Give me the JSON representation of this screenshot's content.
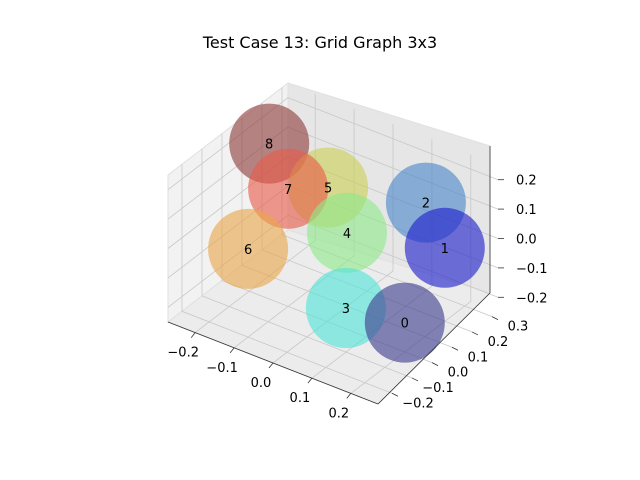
{
  "chart_data": {
    "type": "scatter3d",
    "title": "Test Case 13: Grid Graph 3x3",
    "xlabel": "",
    "ylabel": "",
    "zlabel": "",
    "x_ticks": [
      "−0.2",
      "−0.1",
      "0.0",
      "0.1",
      "0.2"
    ],
    "y_ticks": [
      "−0.2",
      "−0.1",
      "0.0",
      "0.1",
      "0.2",
      "0.3"
    ],
    "z_ticks": [
      "−0.2",
      "−0.1",
      "0.0",
      "0.1",
      "0.2"
    ],
    "xlim": [
      -0.27,
      0.27
    ],
    "ylim": [
      -0.27,
      0.33
    ],
    "zlim": [
      -0.25,
      0.25
    ],
    "grid": true,
    "nodes": [
      {
        "label": "0",
        "color": "#3d3d8f",
        "x": 0.2,
        "y": 0.0,
        "z": -0.15
      },
      {
        "label": "1",
        "color": "#1f1fcc",
        "x": 0.2,
        "y": 0.2,
        "z": 0.0
      },
      {
        "label": "2",
        "color": "#4a86c8",
        "x": 0.1,
        "y": 0.3,
        "z": 0.05
      },
      {
        "label": "3",
        "color": "#4fe3d6",
        "x": 0.1,
        "y": -0.1,
        "z": -0.1
      },
      {
        "label": "4",
        "color": "#8fe88a",
        "x": 0.0,
        "y": 0.1,
        "z": 0.0
      },
      {
        "label": "5",
        "color": "#c9cf56",
        "x": -0.1,
        "y": 0.2,
        "z": 0.05
      },
      {
        "label": "6",
        "color": "#e8a64a",
        "x": -0.1,
        "y": -0.2,
        "z": 0.05
      },
      {
        "label": "7",
        "color": "#e85c4a",
        "x": -0.1,
        "y": 0.0,
        "z": 0.15
      },
      {
        "label": "8",
        "color": "#8f3d3d",
        "x": -0.2,
        "y": 0.1,
        "z": 0.2
      }
    ]
  }
}
